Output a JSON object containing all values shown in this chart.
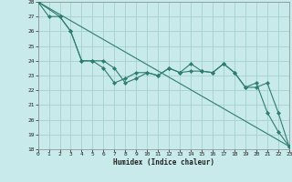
{
  "title": "",
  "xlabel": "Humidex (Indice chaleur)",
  "line_color": "#2e7d6e",
  "bg_color": "#c8eaea",
  "grid_color": "#aad4d4",
  "x_min": 0,
  "x_max": 23,
  "y_min": 18,
  "y_max": 28,
  "line1_x": [
    0,
    1,
    2,
    3,
    4,
    5,
    6,
    7,
    8,
    9,
    10,
    11,
    12,
    13,
    14,
    15,
    16,
    17,
    18,
    19,
    20,
    21,
    22,
    23
  ],
  "line1_y": [
    28,
    27,
    27,
    26,
    24,
    24,
    23.5,
    22.5,
    22.8,
    23.2,
    23.2,
    23.0,
    23.5,
    23.2,
    23.3,
    23.3,
    23.2,
    23.8,
    23.2,
    22.2,
    22.5,
    20.5,
    19.2,
    18.2
  ],
  "line2_x": [
    0,
    2,
    3,
    4,
    5,
    6,
    7,
    8,
    9,
    10,
    11,
    12,
    13,
    14,
    15,
    16,
    17,
    18,
    19,
    20,
    21,
    22,
    23
  ],
  "line2_y": [
    28,
    27,
    26,
    24,
    24,
    24,
    23.5,
    22.5,
    22.8,
    23.2,
    23.0,
    23.5,
    23.2,
    23.8,
    23.3,
    23.2,
    23.8,
    23.2,
    22.2,
    22.2,
    22.5,
    20.5,
    18.2
  ],
  "line3_x": [
    0,
    23
  ],
  "line3_y": [
    28,
    18.2
  ]
}
